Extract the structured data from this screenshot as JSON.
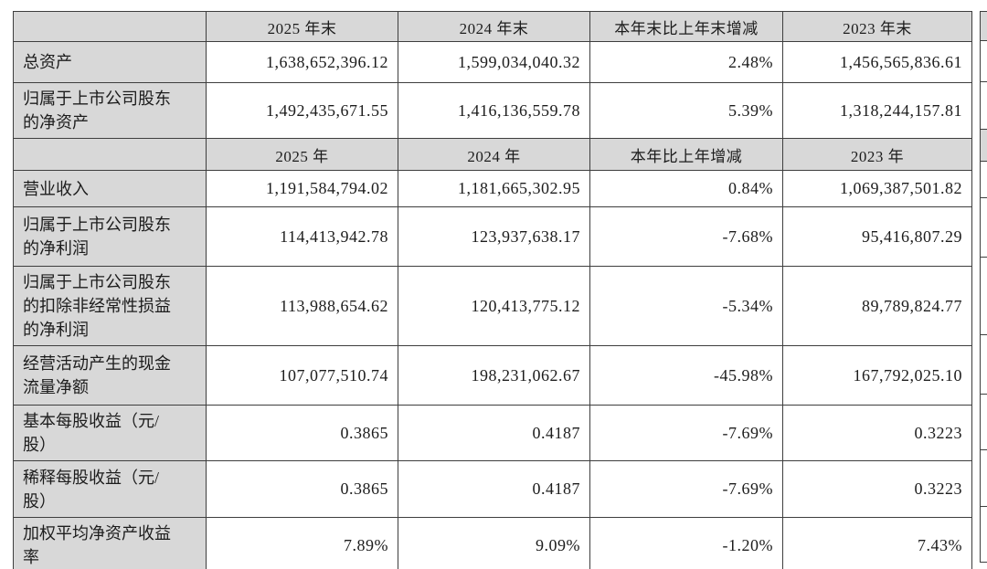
{
  "colors": {
    "header_cell_bg": "#d8d8d8",
    "label_cell_bg": "#d8d8d8",
    "grid_border": "#3e3e3e",
    "text": "#1c1c1c",
    "page_bg": "#ffffff"
  },
  "table": {
    "header_year_end": {
      "blank": "",
      "y2025": "2025 年末",
      "y2024": "2024 年末",
      "change": "本年末比上年末增减",
      "y2023": "2023 年末"
    },
    "header_year": {
      "blank": "",
      "y2025": "2025 年",
      "y2024": "2024 年",
      "change": "本年比上年增减",
      "y2023": "2023 年"
    },
    "balance_rows": [
      {
        "label": "总资产",
        "v2025": "1,638,652,396.12",
        "v2024": "1,599,034,040.32",
        "change": "2.48%",
        "v2023": "1,456,565,836.61"
      },
      {
        "label": "归属于上市公司股东的净资产",
        "v2025": "1,492,435,671.55",
        "v2024": "1,416,136,559.78",
        "change": "5.39%",
        "v2023": "1,318,244,157.81"
      }
    ],
    "performance_rows": [
      {
        "label": "营业收入",
        "v2025": "1,191,584,794.02",
        "v2024": "1,181,665,302.95",
        "change": "0.84%",
        "v2023": "1,069,387,501.82"
      },
      {
        "label": "归属于上市公司股东的净利润",
        "v2025": "114,413,942.78",
        "v2024": "123,937,638.17",
        "change": "-7.68%",
        "v2023": "95,416,807.29"
      },
      {
        "label": "归属于上市公司股东的扣除非经常性损益的净利润",
        "v2025": "113,988,654.62",
        "v2024": "120,413,775.12",
        "change": "-5.34%",
        "v2023": "89,789,824.77"
      },
      {
        "label": "经营活动产生的现金流量净额",
        "v2025": "107,077,510.74",
        "v2024": "198,231,062.67",
        "change": "-45.98%",
        "v2023": "167,792,025.10"
      },
      {
        "label": "基本每股收益（元/股）",
        "v2025": "0.3865",
        "v2024": "0.4187",
        "change": "-7.69%",
        "v2023": "0.3223"
      },
      {
        "label": "稀释每股收益（元/股）",
        "v2025": "0.3865",
        "v2024": "0.4187",
        "change": "-7.69%",
        "v2023": "0.3223"
      },
      {
        "label": "加权平均净资产收益率",
        "v2025": "7.89%",
        "v2024": "9.09%",
        "change": "-1.20%",
        "v2023": "7.43%"
      }
    ]
  }
}
